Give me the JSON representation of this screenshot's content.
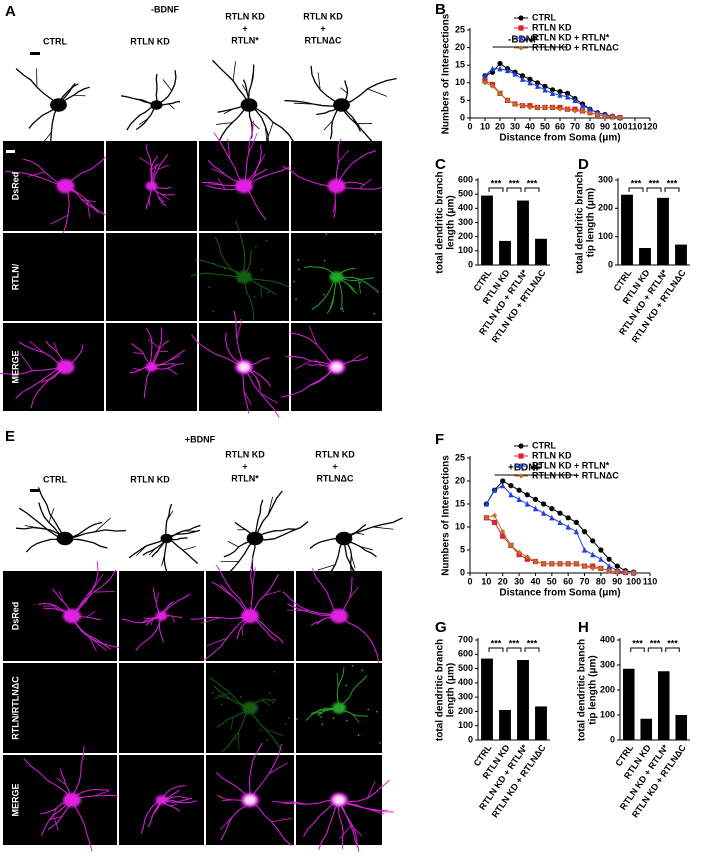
{
  "panels": [
    {
      "letter": "A",
      "title": "-BDNF",
      "columns": [
        [
          "CTRL"
        ],
        [
          "RTLN KD"
        ],
        [
          "RTLN KD",
          "+",
          "RTLN*"
        ],
        [
          "RTLN KD",
          "+",
          "RTLNΔC"
        ]
      ],
      "rows": [
        "DsRed",
        "RTLN/",
        "MERGE"
      ]
    },
    {
      "letter": "E",
      "title": "+BDNF",
      "columns": [
        [
          "CTRL"
        ],
        [
          "RTLN KD"
        ],
        [
          "RTLN KD",
          "+",
          "RTLN*"
        ],
        [
          "RTLN KD",
          "+",
          "RTLNΔC"
        ]
      ],
      "rows": [
        "DsRed",
        "RTLN/RTLNΔC",
        "MERGE"
      ]
    }
  ],
  "chart_data": [
    {
      "type": "line",
      "letter": "B",
      "title": "-BDNF",
      "xlabel": "Distance from Soma (μm)",
      "ylabel": "Numbers of Intersections",
      "x": [
        10,
        15,
        20,
        25,
        30,
        35,
        40,
        45,
        50,
        55,
        60,
        65,
        70,
        75,
        80,
        85,
        90,
        95,
        100
      ],
      "xlim": [
        0,
        120
      ],
      "xticks": [
        0,
        10,
        20,
        30,
        40,
        50,
        60,
        70,
        80,
        90,
        100,
        110,
        120
      ],
      "ylim": [
        0,
        25
      ],
      "yticks": [
        0,
        5,
        10,
        15,
        20,
        25
      ],
      "significance": {
        "from": 15,
        "to": 65,
        "label": "***"
      },
      "series": [
        {
          "name": "CTRL",
          "color": "#000000",
          "marker": "circle",
          "values": [
            12,
            13,
            15.5,
            14,
            13,
            12,
            11,
            10,
            9,
            8,
            7.5,
            7,
            5.5,
            4,
            2.5,
            1.5,
            1,
            0.5,
            0.2
          ]
        },
        {
          "name": "RTLN KD",
          "color": "#e0202a",
          "marker": "square",
          "values": [
            10.5,
            9.5,
            7,
            5,
            4,
            3.5,
            3.5,
            3,
            3,
            3,
            3,
            2.5,
            2.5,
            2,
            1.5,
            1,
            0.5,
            0.3,
            0.1
          ]
        },
        {
          "name": "RTLN KD + RTLN*",
          "color": "#1f3fe0",
          "marker": "triangle",
          "values": [
            12,
            14,
            14,
            13.5,
            12.5,
            11,
            10,
            9,
            8,
            7,
            6.5,
            6,
            5,
            3.5,
            2.5,
            1.5,
            1,
            0.5,
            0.2
          ]
        },
        {
          "name": "RTLN KD + RTLNΔC",
          "color": "#b8742a",
          "marker": "diamond",
          "values": [
            10,
            9,
            7,
            5,
            4,
            3.5,
            3,
            3,
            3,
            3,
            2.5,
            2.5,
            2,
            2,
            1.5,
            1,
            0.5,
            0.3,
            0.1
          ]
        }
      ]
    },
    {
      "type": "bar",
      "letter": "C",
      "ylabel": [
        "total dendritic branch",
        "length (μm)"
      ],
      "categories": [
        "CTRL",
        "RTLN KD",
        "RTLN KD + RTLN*",
        "RTLN KD + RTLNΔC"
      ],
      "values": [
        490,
        170,
        455,
        185
      ],
      "color": "#000000",
      "ylim": [
        0,
        600
      ],
      "yticks": [
        0,
        100,
        200,
        300,
        400,
        500,
        600
      ],
      "significance": [
        {
          "pair": [
            0,
            1
          ],
          "label": "***"
        },
        {
          "pair": [
            1,
            2
          ],
          "label": "***"
        },
        {
          "pair": [
            2,
            3
          ],
          "label": "***"
        }
      ]
    },
    {
      "type": "bar",
      "letter": "D",
      "ylabel": [
        "total dendritic branch",
        "tip length (μm)"
      ],
      "categories": [
        "CTRL",
        "RTLN KD",
        "RTLN KD + RTLN*",
        "RTLN KD + RTLNΔC"
      ],
      "values": [
        248,
        60,
        237,
        72
      ],
      "color": "#000000",
      "ylim": [
        0,
        300
      ],
      "yticks": [
        0,
        100,
        200,
        300
      ],
      "significance": [
        {
          "pair": [
            0,
            1
          ],
          "label": "***"
        },
        {
          "pair": [
            1,
            2
          ],
          "label": "***"
        },
        {
          "pair": [
            2,
            3
          ],
          "label": "***"
        }
      ]
    },
    {
      "type": "line",
      "letter": "F",
      "title": "+BDNF",
      "xlabel": "Distance from Soma (μm)",
      "ylabel": "Numbers of Intersections",
      "x": [
        10,
        15,
        20,
        25,
        30,
        35,
        40,
        45,
        50,
        55,
        60,
        65,
        70,
        75,
        80,
        85,
        90,
        95,
        100
      ],
      "xlim": [
        0,
        110
      ],
      "xticks": [
        0,
        10,
        20,
        30,
        40,
        50,
        60,
        70,
        80,
        90,
        100,
        110
      ],
      "ylim": [
        0,
        25
      ],
      "yticks": [
        0,
        5,
        10,
        15,
        20,
        25
      ],
      "significance": {
        "from": 15,
        "to": 65,
        "label": "***"
      },
      "series": [
        {
          "name": "CTRL",
          "color": "#000000",
          "marker": "circle",
          "values": [
            15,
            18,
            20,
            19,
            18,
            17,
            16,
            15,
            14,
            13,
            12,
            11,
            9,
            7,
            5,
            3,
            1.5,
            0.5,
            0.2
          ]
        },
        {
          "name": "RTLN KD",
          "color": "#e0202a",
          "marker": "square",
          "values": [
            12,
            11,
            8,
            6,
            4,
            3,
            2.5,
            2,
            2,
            2,
            2,
            2,
            1.5,
            1.5,
            1,
            0.5,
            0.3,
            0.1,
            0
          ]
        },
        {
          "name": "RTLN KD + RTLN*",
          "color": "#1f3fe0",
          "marker": "triangle",
          "values": [
            15,
            18,
            19,
            17,
            16,
            15,
            14,
            13,
            12,
            11,
            10,
            9,
            5,
            4,
            3,
            1.5,
            0.5,
            0.3,
            0.1
          ]
        },
        {
          "name": "RTLN KD + RTLNΔC",
          "color": "#b8742a",
          "marker": "diamond",
          "values": [
            12,
            12.5,
            9,
            6,
            4.5,
            3.5,
            2.5,
            2,
            2,
            2,
            2,
            2,
            1.5,
            1,
            1,
            0.5,
            0.3,
            0.1,
            0
          ]
        }
      ]
    },
    {
      "type": "bar",
      "letter": "G",
      "ylabel": [
        "total dendritic branch",
        "length (μm)"
      ],
      "categories": [
        "CTRL",
        "RTLN KD",
        "RTLN KD + RTLN*",
        "RTLN KD + RTLNΔC"
      ],
      "values": [
        570,
        210,
        560,
        235
      ],
      "color": "#000000",
      "ylim": [
        0,
        700
      ],
      "yticks": [
        0,
        100,
        200,
        300,
        400,
        500,
        600,
        700
      ],
      "significance": [
        {
          "pair": [
            0,
            1
          ],
          "label": "***"
        },
        {
          "pair": [
            1,
            2
          ],
          "label": "***"
        },
        {
          "pair": [
            2,
            3
          ],
          "label": "***"
        }
      ]
    },
    {
      "type": "bar",
      "letter": "H",
      "ylabel": [
        "total dendritic branch",
        "tip length (μm)"
      ],
      "categories": [
        "CTRL",
        "RTLN KD",
        "RTLN KD + RTLN*",
        "RTLN KD + RTLNΔC"
      ],
      "values": [
        285,
        85,
        275,
        100
      ],
      "color": "#000000",
      "ylim": [
        0,
        400
      ],
      "yticks": [
        0,
        100,
        200,
        300,
        400
      ],
      "significance": [
        {
          "pair": [
            0,
            1
          ],
          "label": "***"
        },
        {
          "pair": [
            1,
            2
          ],
          "label": "***"
        },
        {
          "pair": [
            2,
            3
          ],
          "label": "***"
        }
      ]
    }
  ]
}
